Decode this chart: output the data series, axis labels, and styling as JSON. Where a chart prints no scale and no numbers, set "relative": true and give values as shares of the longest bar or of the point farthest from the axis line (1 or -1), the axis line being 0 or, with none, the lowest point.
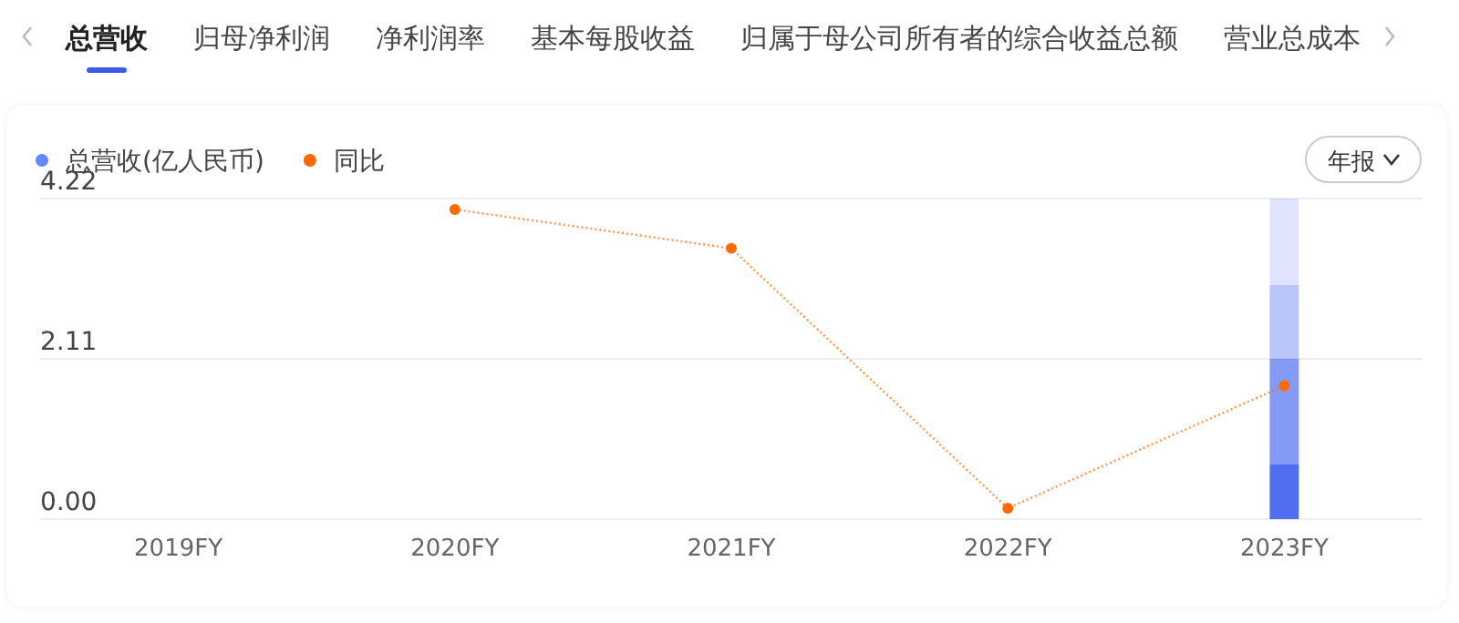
{
  "chart_data": [
    {
      "type": "bar",
      "categories": [
        "2019FY",
        "2020FY",
        "2021FY",
        "2022FY",
        "2023FY"
      ],
      "ylim": [
        0,
        4.22
      ],
      "yticks": [
        {
          "value": 0,
          "label": "0.00"
        },
        2.11,
        4.22
      ],
      "grid": "y",
      "legend": "top left",
      "annotations": [
        "总营收",
        "归母净利润",
        "净利润率",
        "基本每股收益",
        "归属于母公司所有者的综合收益总额",
        "营业总成本",
        "年报"
      ],
      "series": [
        {
          "name": "总营收(亿人民币)",
          "color": "#4f6ff0",
          "values": [
            null,
            null,
            null,
            null,
            4.22
          ]
        }
      ]
    },
    {
      "type": "line",
      "categories": [
        null,
        null,
        null,
        null,
        null
      ],
      "relative": true,
      "legend": "top left",
      "marker": "circle",
      "line_style": "dotted",
      "series": [
        {
          "name": "同比",
          "color": "#ff6a00",
          "values": [
            null,
            1,
            0.87,
            0,
            0.41
          ]
        }
      ]
    }
  ]
}
